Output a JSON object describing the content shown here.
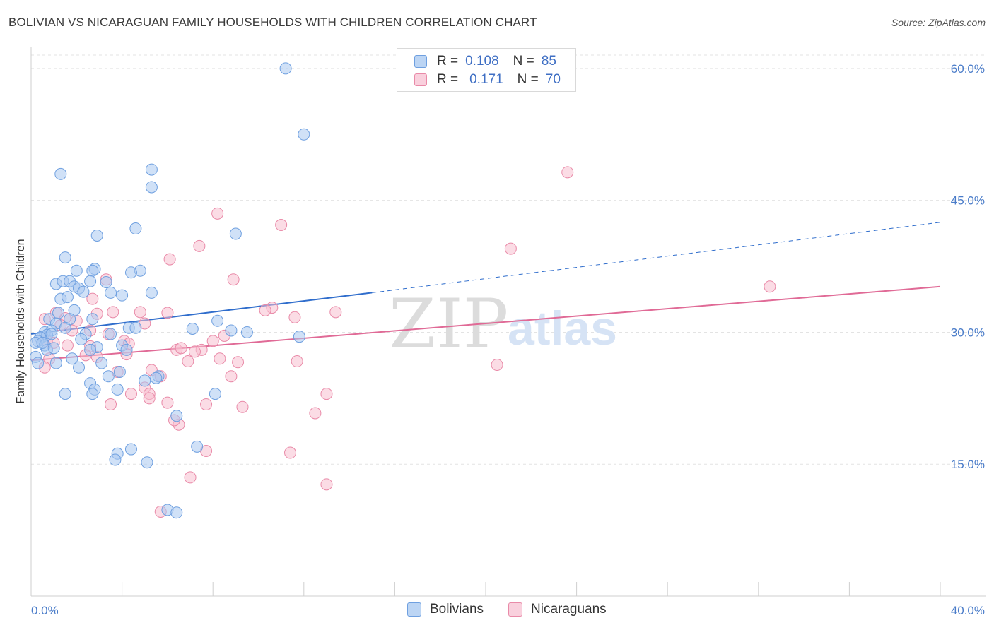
{
  "title": "BOLIVIAN VS NICARAGUAN FAMILY HOUSEHOLDS WITH CHILDREN CORRELATION CHART",
  "source": "Source: ZipAtlas.com",
  "watermark": {
    "zip": "ZIP",
    "atlas": "atlas"
  },
  "legend": {
    "rows": [
      {
        "r_label": "R =",
        "r_value": "0.108",
        "n_label": "N =",
        "n_value": "85",
        "color": "#a9c8f0"
      },
      {
        "r_label": "R =",
        "r_value": "0.171",
        "n_label": "N =",
        "n_value": "70",
        "color": "#f7bfd0"
      }
    ]
  },
  "bottom_legend": [
    {
      "label": "Bolivians",
      "color": "#a9c8f0"
    },
    {
      "label": "Nicaraguans",
      "color": "#f7bfd0"
    }
  ],
  "chart_data": {
    "type": "scatter",
    "title": "BOLIVIAN VS NICARAGUAN FAMILY HOUSEHOLDS WITH CHILDREN CORRELATION CHART",
    "xlabel": "",
    "ylabel": "Family Households with Children",
    "xlim": [
      0,
      40
    ],
    "ylim": [
      0,
      62
    ],
    "x_tick_labels": [
      "0.0%",
      "40.0%"
    ],
    "y_ticks": [
      15,
      30,
      45,
      60
    ],
    "y_tick_labels": [
      "15.0%",
      "30.0%",
      "45.0%",
      "60.0%"
    ],
    "grid": true,
    "legend_position": "top-center",
    "series": [
      {
        "name": "Bolivians",
        "color": "#6fa0e0",
        "fill": "#a9c8f0",
        "trend": {
          "x_start": 0,
          "y_start": 29.8,
          "x_solid_end": 15,
          "y_solid_end": 34.5,
          "x_end": 40,
          "y_end": 42.5,
          "color": "#2f6dcc"
        },
        "points": [
          [
            11.2,
            60.0
          ],
          [
            12.0,
            52.5
          ],
          [
            1.3,
            48.0
          ],
          [
            5.3,
            48.5
          ],
          [
            5.3,
            46.5
          ],
          [
            2.9,
            41.0
          ],
          [
            4.6,
            41.8
          ],
          [
            9.0,
            41.2
          ],
          [
            1.5,
            38.5
          ],
          [
            2.8,
            37.2
          ],
          [
            2.0,
            37.0
          ],
          [
            2.7,
            37.0
          ],
          [
            4.8,
            37.0
          ],
          [
            4.4,
            36.8
          ],
          [
            1.1,
            35.5
          ],
          [
            1.4,
            35.8
          ],
          [
            1.7,
            35.8
          ],
          [
            2.6,
            35.8
          ],
          [
            3.3,
            35.7
          ],
          [
            1.9,
            35.2
          ],
          [
            2.1,
            35.0
          ],
          [
            2.3,
            34.6
          ],
          [
            3.5,
            34.5
          ],
          [
            4.0,
            34.2
          ],
          [
            5.3,
            34.5
          ],
          [
            1.3,
            33.8
          ],
          [
            1.6,
            34.0
          ],
          [
            1.9,
            32.5
          ],
          [
            2.7,
            31.5
          ],
          [
            1.2,
            32.2
          ],
          [
            1.7,
            31.5
          ],
          [
            0.8,
            31.5
          ],
          [
            1.1,
            31.0
          ],
          [
            1.5,
            30.5
          ],
          [
            0.9,
            30.2
          ],
          [
            0.6,
            30.0
          ],
          [
            0.5,
            29.5
          ],
          [
            0.7,
            29.7
          ],
          [
            0.4,
            29.4
          ],
          [
            0.3,
            29.0
          ],
          [
            0.2,
            28.8
          ],
          [
            0.6,
            28.5
          ],
          [
            0.7,
            28.0
          ],
          [
            0.2,
            27.2
          ],
          [
            0.3,
            26.5
          ],
          [
            1.1,
            26.5
          ],
          [
            2.4,
            29.8
          ],
          [
            2.2,
            29.2
          ],
          [
            3.5,
            29.8
          ],
          [
            4.3,
            30.5
          ],
          [
            4.6,
            30.5
          ],
          [
            4.0,
            28.5
          ],
          [
            4.2,
            28.0
          ],
          [
            2.9,
            28.3
          ],
          [
            2.6,
            28.0
          ],
          [
            3.1,
            26.5
          ],
          [
            3.9,
            25.5
          ],
          [
            5.6,
            25.0
          ],
          [
            5.5,
            24.8
          ],
          [
            2.6,
            24.2
          ],
          [
            2.8,
            23.5
          ],
          [
            3.8,
            23.5
          ],
          [
            1.5,
            23.0
          ],
          [
            2.7,
            23.0
          ],
          [
            7.1,
            30.4
          ],
          [
            8.8,
            30.2
          ],
          [
            9.5,
            30.0
          ],
          [
            11.8,
            29.5
          ],
          [
            8.2,
            31.3
          ],
          [
            8.1,
            23.0
          ],
          [
            6.4,
            20.5
          ],
          [
            7.3,
            17.0
          ],
          [
            4.4,
            16.7
          ],
          [
            3.8,
            16.2
          ],
          [
            3.7,
            15.5
          ],
          [
            5.1,
            15.2
          ],
          [
            6.0,
            9.8
          ],
          [
            6.4,
            9.5
          ],
          [
            1.0,
            28.2
          ],
          [
            0.5,
            28.8
          ],
          [
            0.9,
            29.8
          ],
          [
            1.8,
            27.0
          ],
          [
            2.1,
            26.0
          ],
          [
            3.4,
            25.0
          ],
          [
            5.0,
            24.5
          ]
        ]
      },
      {
        "name": "Nicaraguans",
        "color": "#e98aa8",
        "fill": "#f7bfd0",
        "trend": {
          "x_start": 0,
          "y_start": 26.8,
          "x_end": 40,
          "y_end": 35.2,
          "color": "#e06a96"
        },
        "points": [
          [
            23.6,
            48.2
          ],
          [
            8.2,
            43.5
          ],
          [
            11.0,
            42.2
          ],
          [
            7.4,
            39.8
          ],
          [
            21.1,
            39.5
          ],
          [
            6.1,
            38.3
          ],
          [
            8.9,
            36.0
          ],
          [
            3.3,
            36.0
          ],
          [
            32.5,
            35.2
          ],
          [
            2.7,
            33.8
          ],
          [
            10.6,
            32.8
          ],
          [
            10.3,
            32.5
          ],
          [
            13.4,
            32.3
          ],
          [
            11.6,
            31.7
          ],
          [
            0.6,
            31.5
          ],
          [
            1.5,
            31.6
          ],
          [
            2.0,
            31.3
          ],
          [
            1.1,
            32.2
          ],
          [
            2.9,
            32.1
          ],
          [
            3.6,
            32.3
          ],
          [
            4.8,
            32.3
          ],
          [
            6.0,
            32.2
          ],
          [
            5.0,
            31.0
          ],
          [
            1.8,
            30.2
          ],
          [
            2.6,
            30.2
          ],
          [
            3.4,
            29.8
          ],
          [
            8.5,
            29.6
          ],
          [
            8.0,
            29.0
          ],
          [
            0.7,
            29.0
          ],
          [
            1.0,
            28.8
          ],
          [
            1.6,
            28.5
          ],
          [
            4.1,
            29.0
          ],
          [
            4.3,
            28.7
          ],
          [
            2.6,
            28.4
          ],
          [
            6.4,
            28.0
          ],
          [
            6.6,
            28.2
          ],
          [
            7.5,
            28.0
          ],
          [
            7.2,
            27.8
          ],
          [
            2.4,
            27.4
          ],
          [
            2.9,
            27.2
          ],
          [
            0.8,
            27.0
          ],
          [
            0.6,
            26.0
          ],
          [
            6.9,
            26.7
          ],
          [
            8.3,
            27.0
          ],
          [
            9.1,
            26.6
          ],
          [
            11.7,
            26.7
          ],
          [
            20.5,
            26.3
          ],
          [
            3.8,
            25.5
          ],
          [
            5.3,
            25.7
          ],
          [
            5.7,
            25.0
          ],
          [
            8.8,
            25.0
          ],
          [
            5.0,
            23.7
          ],
          [
            5.2,
            23.0
          ],
          [
            4.4,
            23.0
          ],
          [
            5.2,
            22.5
          ],
          [
            3.5,
            21.8
          ],
          [
            6.0,
            22.0
          ],
          [
            7.7,
            21.8
          ],
          [
            9.3,
            21.5
          ],
          [
            13.0,
            23.0
          ],
          [
            12.5,
            20.8
          ],
          [
            6.5,
            19.5
          ],
          [
            7.7,
            16.5
          ],
          [
            11.4,
            16.3
          ],
          [
            13.0,
            12.7
          ],
          [
            7.0,
            13.5
          ],
          [
            5.7,
            9.6
          ],
          [
            6.3,
            20.0
          ],
          [
            4.2,
            27.5
          ],
          [
            1.3,
            30.8
          ]
        ]
      }
    ]
  }
}
